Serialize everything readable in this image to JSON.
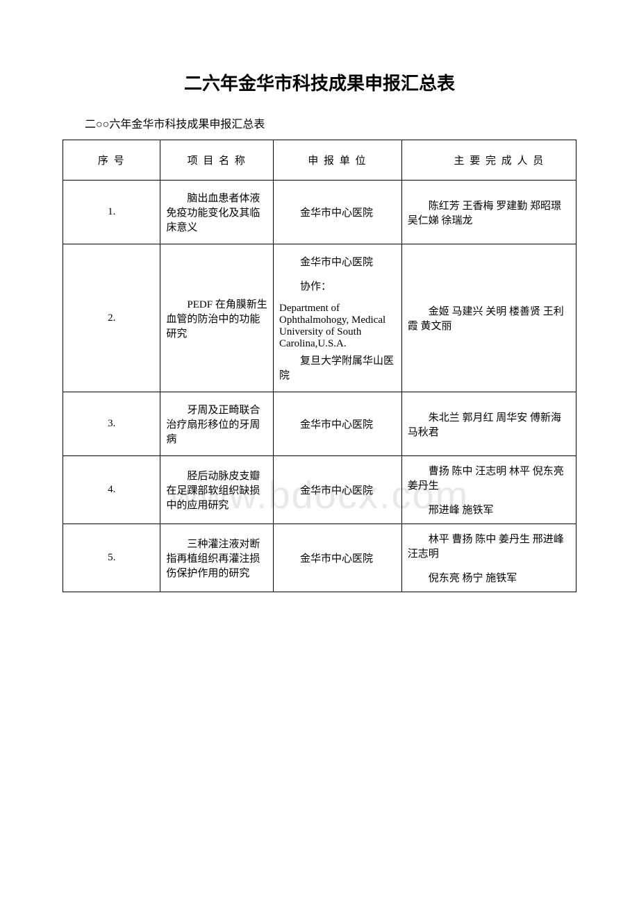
{
  "title": "二六年金华市科技成果申报汇总表",
  "subtitle": "二○○六年金华市科技成果申报汇总表",
  "watermark": "www.bdocx.com",
  "headers": {
    "seq": "序 号",
    "name": "项 目 名 称",
    "unit": "申 报 单 位",
    "people": "主 要 完 成 人 员"
  },
  "rows": [
    {
      "seq": "1.",
      "name": "脑出血患者体液免疫功能变化及其临床意义",
      "unit": [
        "金华市中心医院"
      ],
      "people": [
        "陈红芳 王香梅 罗建勤 郑昭璟 吴仁娣 徐瑞龙"
      ]
    },
    {
      "seq": "2.",
      "name": "PEDF 在角膜新生血管的防治中的功能研究",
      "unit_complex": {
        "p1": "金华市中心医院",
        "p2_label": "协作：",
        "p2_en": "Department of Ophthalmohogy, Medical University of South Carolina,U.S.A.",
        "p3": "复旦大学附属华山医院"
      },
      "people": [
        "金姬 马建兴 关明 楼善贤 王利霞 黄文丽"
      ]
    },
    {
      "seq": "3.",
      "name": "牙周及正畸联合治疗扇形移位的牙周病",
      "unit": [
        "金华市中心医院"
      ],
      "people": [
        "朱北兰 郭月红 周华安 傅新海 马秋君"
      ]
    },
    {
      "seq": "4.",
      "name": "胫后动脉皮支瓣在足踝部软组织缺损中的应用研究",
      "unit": [
        "金华市中心医院"
      ],
      "people": [
        "曹扬 陈中 汪志明 林平 倪东亮 姜丹生",
        "邢进峰 施铁军"
      ]
    },
    {
      "seq": "5.",
      "name": "三种灌注液对断指再植组织再灌注损伤保护作用的研究",
      "unit": [
        "金华市中心医院"
      ],
      "people": [
        "林平 曹扬 陈中 姜丹生 邢进峰 汪志明",
        "倪东亮 杨宁 施铁军"
      ]
    }
  ]
}
